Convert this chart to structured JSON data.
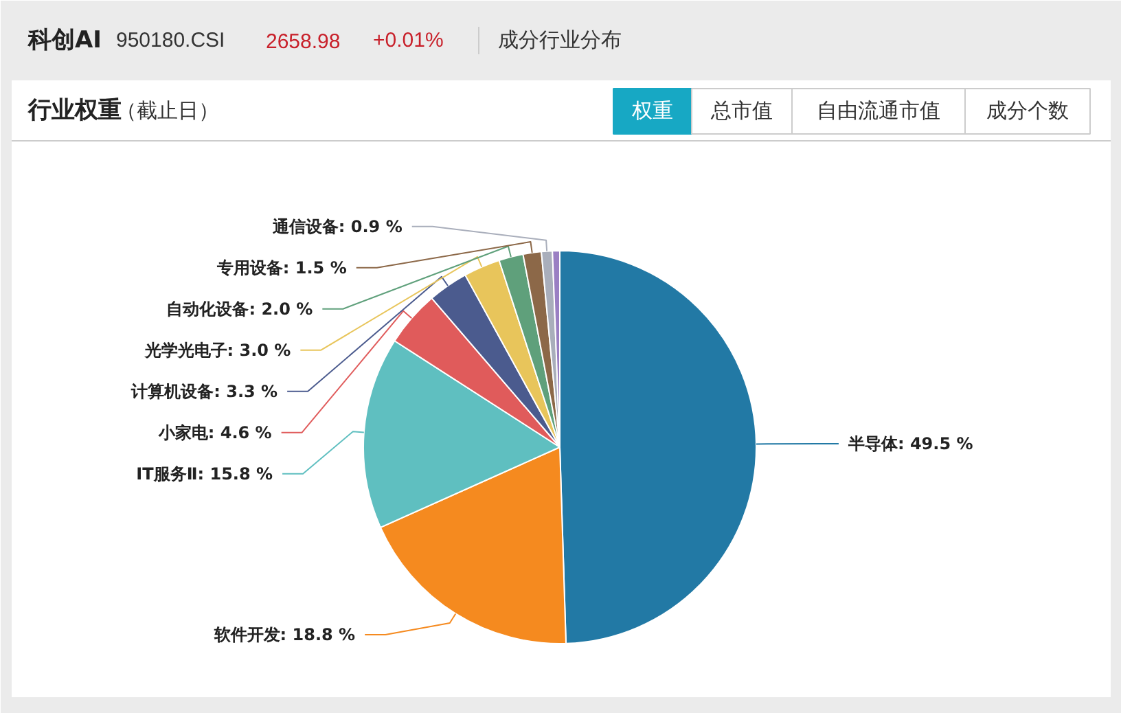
{
  "chart_data": {
    "type": "pie",
    "title": "科创AI",
    "subtitle": "行业权重",
    "annotations": [
      "950180.CSI",
      "2658.98",
      "+0.01%",
      "成分行业分布",
      "（截止日）",
      "权重",
      "总市值",
      "自由流通市值",
      "成分个数"
    ],
    "categories": [
      "半导体",
      "软件开发",
      "IT服务Ⅱ",
      "小家电",
      "计算机设备",
      "光学光电子",
      "自动化设备",
      "专用设备",
      "通信设备",
      null
    ],
    "values": [
      49.5,
      18.8,
      15.8,
      4.6,
      3.3,
      3.0,
      2.0,
      1.5,
      0.9,
      0.6
    ],
    "value_labels": [
      "49.5 %",
      "18.8 %",
      "15.8 %",
      "4.6 %",
      "3.3 %",
      "3.0 %",
      "2.0 %",
      "1.5 %",
      "0.9 %",
      null
    ],
    "colors": [
      "#2279a5",
      "#f58a1f",
      "#5fbfc0",
      "#e05b5b",
      "#4b5b8e",
      "#e8c55b",
      "#5fa07b",
      "#8c6848",
      "#a9aebb",
      "#9a7fc3"
    ]
  }
}
